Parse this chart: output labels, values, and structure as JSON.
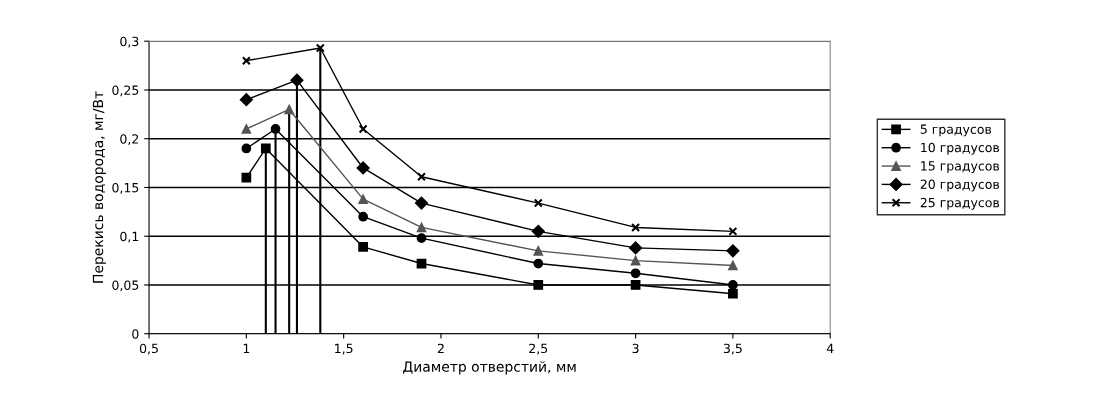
{
  "chart_data": {
    "type": "line",
    "xlabel": "Диаметр отверстий, мм",
    "ylabel": "Перекись водорода, мг/Вт",
    "xlim": [
      0.5,
      4
    ],
    "xticks": [
      {
        "value": 0.5,
        "label": "0,5"
      },
      1,
      {
        "value": 1.5,
        "label": "1,5"
      },
      2,
      {
        "value": 2.5,
        "label": "2,5"
      },
      3,
      {
        "value": 3.5,
        "label": "3,5"
      },
      4
    ],
    "ylim": [
      0,
      0.3
    ],
    "yticks": [
      0,
      {
        "value": 0.05,
        "label": "0,05"
      },
      {
        "value": 0.1,
        "label": "0,1"
      },
      {
        "value": 0.15,
        "label": "0,15"
      },
      {
        "value": 0.2,
        "label": "0,2"
      },
      {
        "value": 0.25,
        "label": "0,25"
      },
      {
        "value": 0.3,
        "label": "0,3"
      }
    ],
    "grid": "y",
    "legend": "right",
    "series": [
      {
        "name": "5 градусов",
        "color": "#000000",
        "marker": "square",
        "x": [
          1,
          1.1,
          1.6,
          1.9,
          2.5,
          3,
          3.5
        ],
        "values": [
          0.16,
          0.19,
          0.089,
          0.072,
          0.05,
          0.05,
          0.041
        ],
        "errors": [
          null,
          [
            0,
            0.19
          ],
          null,
          null,
          null,
          null,
          null
        ]
      },
      {
        "name": "10 градусов",
        "color": "#000000",
        "marker": "circle",
        "x": [
          1,
          1.15,
          1.6,
          1.9,
          2.5,
          3,
          3.5
        ],
        "values": [
          0.19,
          0.21,
          0.12,
          0.098,
          0.072,
          0.062,
          0.05
        ],
        "errors": [
          null,
          [
            0,
            0.21
          ],
          null,
          null,
          null,
          null,
          null
        ]
      },
      {
        "name": "15 градусов",
        "color": "#555555",
        "marker": "triangle",
        "x": [
          1,
          1.22,
          1.6,
          1.9,
          2.5,
          3,
          3.5
        ],
        "values": [
          0.21,
          0.23,
          0.138,
          0.109,
          0.085,
          0.075,
          0.07
        ],
        "errors": [
          null,
          [
            0,
            0.23
          ],
          null,
          null,
          null,
          null,
          null
        ]
      },
      {
        "name": "20 градусов",
        "color": "#000000",
        "marker": "diamond",
        "x": [
          1,
          1.26,
          1.6,
          1.9,
          2.5,
          3,
          3.5
        ],
        "values": [
          0.24,
          0.26,
          0.17,
          0.134,
          0.105,
          0.088,
          0.085
        ],
        "errors": [
          null,
          [
            0,
            0.26
          ],
          null,
          null,
          null,
          null,
          null
        ]
      },
      {
        "name": "25 градусов",
        "color": "#000000",
        "marker": "cross",
        "x": [
          1,
          1.38,
          1.6,
          1.9,
          2.5,
          3,
          3.5
        ],
        "values": [
          0.28,
          0.293,
          0.21,
          0.161,
          0.134,
          0.109,
          0.105
        ],
        "errors": [
          null,
          [
            0,
            0.293
          ],
          null,
          null,
          null,
          null,
          null
        ]
      }
    ]
  }
}
